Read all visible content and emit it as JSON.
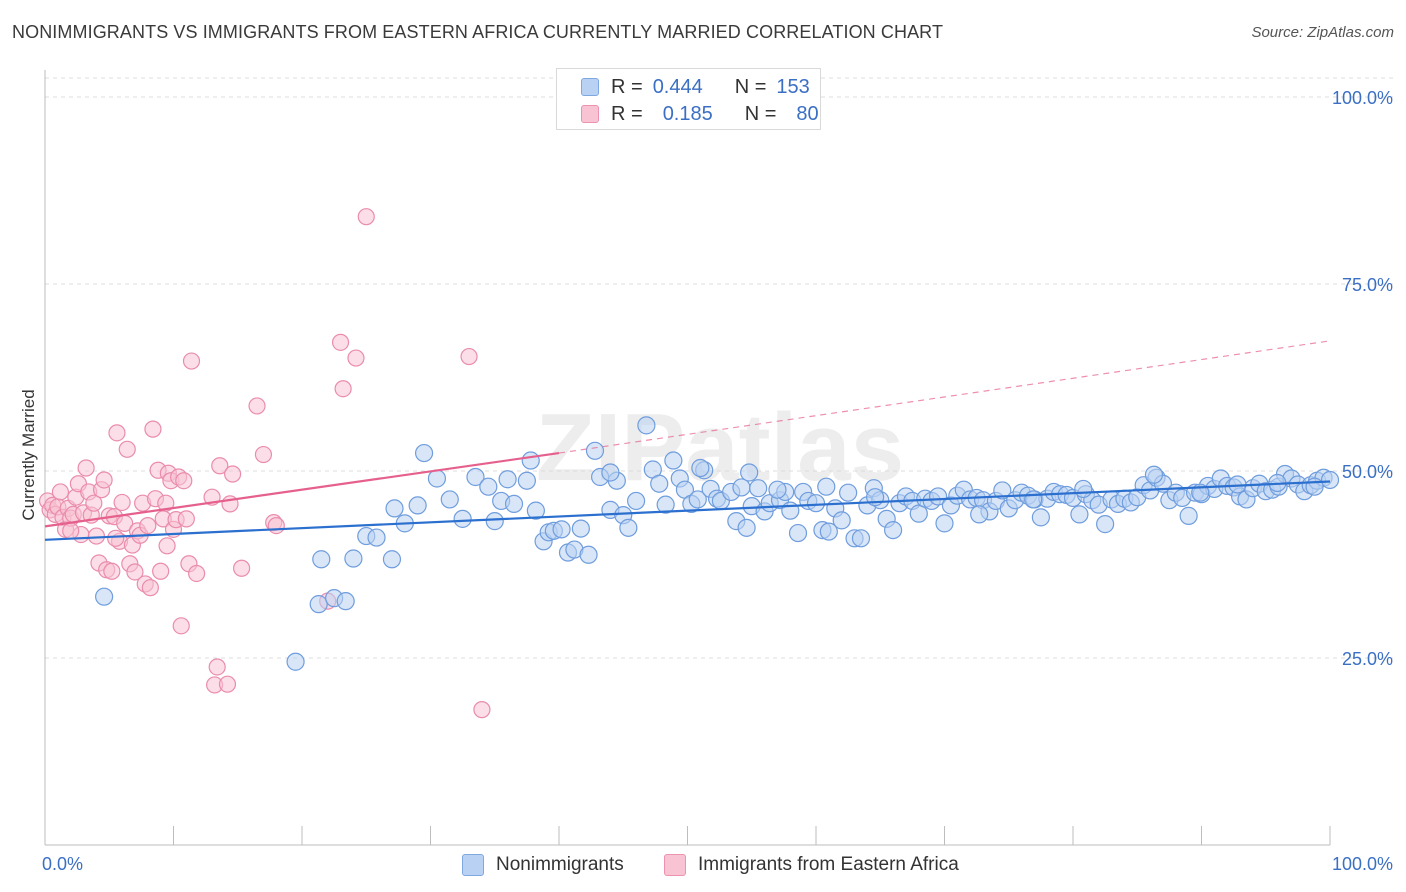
{
  "title": "NONIMMIGRANTS VS IMMIGRANTS FROM EASTERN AFRICA CURRENTLY MARRIED CORRELATION CHART",
  "source": "Source: ZipAtlas.com",
  "watermark": "ZIPatlas",
  "legend": {
    "series": [
      {
        "r_label": "R =",
        "r_value": "0.444",
        "n_label": "N =",
        "n_value": "153"
      },
      {
        "r_label": "R =",
        "r_value": "0.185",
        "n_label": "N =",
        "n_value": "80"
      }
    ]
  },
  "colors": {
    "blue_fill": "#b9d2f3",
    "blue_stroke": "#6f9ddd",
    "blue_line": "#2b6fcf",
    "pink_fill": "#f8c3d3",
    "pink_stroke": "#ea8cac",
    "pink_line": "#e5608c",
    "axis_text": "#3b6fc4"
  },
  "chart_data": {
    "type": "scatter",
    "title": "NONIMMIGRANTS VS IMMIGRANTS FROM EASTERN AFRICA CURRENTLY MARRIED CORRELATION CHART",
    "xlabel": "",
    "ylabel": "Currently Married",
    "xlim": [
      0,
      100
    ],
    "ylim": [
      0,
      105
    ],
    "x_tick_labels": [
      "0.0%",
      "100.0%"
    ],
    "y_ticks": [
      25,
      50,
      75,
      100
    ],
    "y_tick_labels": [
      "25.0%",
      "50.0%",
      "75.0%",
      "100.0%"
    ],
    "grid": true,
    "legend_position": "bottom",
    "series": [
      {
        "name": "Nonimmigrants",
        "color": "#6f9ddd",
        "trend": {
          "x0": 0,
          "y0": 40.8,
          "x1": 100,
          "y1": 48.6
        },
        "points": [
          [
            4.6,
            33.2
          ],
          [
            19.5,
            24.5
          ],
          [
            21.5,
            38.2
          ],
          [
            21.3,
            32.2
          ],
          [
            22.5,
            33.0
          ],
          [
            23.4,
            32.6
          ],
          [
            24.0,
            38.3
          ],
          [
            25.0,
            41.3
          ],
          [
            25.8,
            41.1
          ],
          [
            27.0,
            38.2
          ],
          [
            27.2,
            45.0
          ],
          [
            28.0,
            43.0
          ],
          [
            29.0,
            45.4
          ],
          [
            29.5,
            52.4
          ],
          [
            30.5,
            49.0
          ],
          [
            31.5,
            46.2
          ],
          [
            32.5,
            43.6
          ],
          [
            33.5,
            49.2
          ],
          [
            34.5,
            47.9
          ],
          [
            35.0,
            43.3
          ],
          [
            35.5,
            46.0
          ],
          [
            36.0,
            48.9
          ],
          [
            36.5,
            45.6
          ],
          [
            37.5,
            48.7
          ],
          [
            37.8,
            51.4
          ],
          [
            38.2,
            44.7
          ],
          [
            38.8,
            40.6
          ],
          [
            39.2,
            41.8
          ],
          [
            39.6,
            42.0
          ],
          [
            40.2,
            42.2
          ],
          [
            40.7,
            39.1
          ],
          [
            41.2,
            39.5
          ],
          [
            41.7,
            42.3
          ],
          [
            42.3,
            38.8
          ],
          [
            42.8,
            52.7
          ],
          [
            43.2,
            49.2
          ],
          [
            44.0,
            44.8
          ],
          [
            44.5,
            48.7
          ],
          [
            45.0,
            44.1
          ],
          [
            45.4,
            42.4
          ],
          [
            46.0,
            46.0
          ],
          [
            46.8,
            56.1
          ],
          [
            47.3,
            50.2
          ],
          [
            47.8,
            48.3
          ],
          [
            48.3,
            45.5
          ],
          [
            48.9,
            51.4
          ],
          [
            49.4,
            49.0
          ],
          [
            49.8,
            47.5
          ],
          [
            50.3,
            45.6
          ],
          [
            50.8,
            46.2
          ],
          [
            51.3,
            50.1
          ],
          [
            51.8,
            47.6
          ],
          [
            52.3,
            46.3
          ],
          [
            52.6,
            46.0
          ],
          [
            53.4,
            47.2
          ],
          [
            53.8,
            43.3
          ],
          [
            54.2,
            47.8
          ],
          [
            54.6,
            42.4
          ],
          [
            55.0,
            45.3
          ],
          [
            55.5,
            47.7
          ],
          [
            56.0,
            44.6
          ],
          [
            56.4,
            45.7
          ],
          [
            57.2,
            46.1
          ],
          [
            57.6,
            47.2
          ],
          [
            58.0,
            44.7
          ],
          [
            58.6,
            41.7
          ],
          [
            59.0,
            47.2
          ],
          [
            59.4,
            46.0
          ],
          [
            60.0,
            45.7
          ],
          [
            60.5,
            42.1
          ],
          [
            61.0,
            41.9
          ],
          [
            61.5,
            45.0
          ],
          [
            62.0,
            43.4
          ],
          [
            62.5,
            47.1
          ],
          [
            63.0,
            41.0
          ],
          [
            63.5,
            41.0
          ],
          [
            64.0,
            45.4
          ],
          [
            64.5,
            47.7
          ],
          [
            65.0,
            46.1
          ],
          [
            65.5,
            43.6
          ],
          [
            66.0,
            42.1
          ],
          [
            66.5,
            45.7
          ],
          [
            67.0,
            46.6
          ],
          [
            67.5,
            46.0
          ],
          [
            68.0,
            44.3
          ],
          [
            68.5,
            46.3
          ],
          [
            69.0,
            46.0
          ],
          [
            69.5,
            46.6
          ],
          [
            70.0,
            43.0
          ],
          [
            70.5,
            45.4
          ],
          [
            71.0,
            46.7
          ],
          [
            71.5,
            47.5
          ],
          [
            72.0,
            46.2
          ],
          [
            72.5,
            46.4
          ],
          [
            73.0,
            46.1
          ],
          [
            73.5,
            44.6
          ],
          [
            74.0,
            46.0
          ],
          [
            74.5,
            47.4
          ],
          [
            75.0,
            45.0
          ],
          [
            75.5,
            46.1
          ],
          [
            76.0,
            47.1
          ],
          [
            76.5,
            46.7
          ],
          [
            77.0,
            46.2
          ],
          [
            77.5,
            43.8
          ],
          [
            78.0,
            46.3
          ],
          [
            78.5,
            47.2
          ],
          [
            79.0,
            46.9
          ],
          [
            79.5,
            46.8
          ],
          [
            80.0,
            46.4
          ],
          [
            80.5,
            44.2
          ],
          [
            81.0,
            46.9
          ],
          [
            81.5,
            46.1
          ],
          [
            82.0,
            45.5
          ],
          [
            82.5,
            42.9
          ],
          [
            83.0,
            46.2
          ],
          [
            83.5,
            45.6
          ],
          [
            84.0,
            46.3
          ],
          [
            84.5,
            45.8
          ],
          [
            85.0,
            46.5
          ],
          [
            85.5,
            48.1
          ],
          [
            86.0,
            47.4
          ],
          [
            86.5,
            49.1
          ],
          [
            87.0,
            48.3
          ],
          [
            87.5,
            46.1
          ],
          [
            88.0,
            47.1
          ],
          [
            88.5,
            46.4
          ],
          [
            89.0,
            44.0
          ],
          [
            89.5,
            47.1
          ],
          [
            90.0,
            46.9
          ],
          [
            90.5,
            48.0
          ],
          [
            91.0,
            47.6
          ],
          [
            91.5,
            49.0
          ],
          [
            92.0,
            48.0
          ],
          [
            92.5,
            47.8
          ],
          [
            93.0,
            46.6
          ],
          [
            93.5,
            46.2
          ],
          [
            94.0,
            47.7
          ],
          [
            94.5,
            48.3
          ],
          [
            95.0,
            47.3
          ],
          [
            95.5,
            47.5
          ],
          [
            96.0,
            47.9
          ],
          [
            96.5,
            49.6
          ],
          [
            97.0,
            49.0
          ],
          [
            97.5,
            48.2
          ],
          [
            98.0,
            47.3
          ],
          [
            98.5,
            48.1
          ],
          [
            99.0,
            48.7
          ],
          [
            99.5,
            49.1
          ],
          [
            100.0,
            48.8
          ],
          [
            60.8,
            47.9
          ],
          [
            44.0,
            49.8
          ],
          [
            51.0,
            50.4
          ],
          [
            57.0,
            47.5
          ],
          [
            64.6,
            46.5
          ],
          [
            72.7,
            44.2
          ],
          [
            80.8,
            47.6
          ],
          [
            86.3,
            49.5
          ],
          [
            92.8,
            48.2
          ],
          [
            98.8,
            47.9
          ],
          [
            54.8,
            49.8
          ],
          [
            76.9,
            46.2
          ],
          [
            89.9,
            47.1
          ],
          [
            95.9,
            48.4
          ]
        ]
      },
      {
        "name": "Immigrants from Eastern Africa",
        "color": "#ea8cac",
        "trend": {
          "x0": 0,
          "y0": 42.6,
          "x1": 40,
          "y1": 52.4
        },
        "trend_ext": {
          "x0": 40,
          "y0": 52.4,
          "x1": 100,
          "y1": 67.4
        },
        "points": [
          [
            0.2,
            46.0
          ],
          [
            0.4,
            44.8
          ],
          [
            0.6,
            45.4
          ],
          [
            0.8,
            44.2
          ],
          [
            1.0,
            45.2
          ],
          [
            1.2,
            47.2
          ],
          [
            1.4,
            43.8
          ],
          [
            1.6,
            42.2
          ],
          [
            1.8,
            45.0
          ],
          [
            2.0,
            43.7
          ],
          [
            2.2,
            44.2
          ],
          [
            2.4,
            46.5
          ],
          [
            2.6,
            48.3
          ],
          [
            2.8,
            41.5
          ],
          [
            3.0,
            44.4
          ],
          [
            3.2,
            50.4
          ],
          [
            3.4,
            47.2
          ],
          [
            3.6,
            44.1
          ],
          [
            3.8,
            45.7
          ],
          [
            4.0,
            41.3
          ],
          [
            4.2,
            37.7
          ],
          [
            4.4,
            47.5
          ],
          [
            4.6,
            48.8
          ],
          [
            4.8,
            36.8
          ],
          [
            5.0,
            44.0
          ],
          [
            5.2,
            36.6
          ],
          [
            5.4,
            43.9
          ],
          [
            5.6,
            55.1
          ],
          [
            5.8,
            40.6
          ],
          [
            6.0,
            45.8
          ],
          [
            6.2,
            43.0
          ],
          [
            6.4,
            52.9
          ],
          [
            6.6,
            37.6
          ],
          [
            6.8,
            40.1
          ],
          [
            7.0,
            36.5
          ],
          [
            7.2,
            42.0
          ],
          [
            7.4,
            41.4
          ],
          [
            7.6,
            45.7
          ],
          [
            7.8,
            34.9
          ],
          [
            8.0,
            42.7
          ],
          [
            8.2,
            34.4
          ],
          [
            8.4,
            55.6
          ],
          [
            8.6,
            46.3
          ],
          [
            8.8,
            50.1
          ],
          [
            9.0,
            36.6
          ],
          [
            9.2,
            43.6
          ],
          [
            9.4,
            45.7
          ],
          [
            9.6,
            49.7
          ],
          [
            9.8,
            48.7
          ],
          [
            10.0,
            42.2
          ],
          [
            10.2,
            43.5
          ],
          [
            10.4,
            49.2
          ],
          [
            10.6,
            29.3
          ],
          [
            10.8,
            48.7
          ],
          [
            11.0,
            43.6
          ],
          [
            11.2,
            37.6
          ],
          [
            11.4,
            64.7
          ],
          [
            11.8,
            36.3
          ],
          [
            13.0,
            46.5
          ],
          [
            13.2,
            21.4
          ],
          [
            13.4,
            23.8
          ],
          [
            13.6,
            50.7
          ],
          [
            14.2,
            21.5
          ],
          [
            14.4,
            45.6
          ],
          [
            14.6,
            49.6
          ],
          [
            15.3,
            37.0
          ],
          [
            16.5,
            58.7
          ],
          [
            17.0,
            52.2
          ],
          [
            17.8,
            43.1
          ],
          [
            18.0,
            42.7
          ],
          [
            22.0,
            32.6
          ],
          [
            23.0,
            67.2
          ],
          [
            23.2,
            61.0
          ],
          [
            24.2,
            65.1
          ],
          [
            25.0,
            84.0
          ],
          [
            33.0,
            65.3
          ],
          [
            34.0,
            18.1
          ],
          [
            2.0,
            42.0
          ],
          [
            5.5,
            41.0
          ],
          [
            9.5,
            40.0
          ]
        ]
      }
    ]
  },
  "bottom_legend": {
    "items": [
      {
        "label": "Nonimmigrants"
      },
      {
        "label": "Immigrants from Eastern Africa"
      }
    ]
  }
}
